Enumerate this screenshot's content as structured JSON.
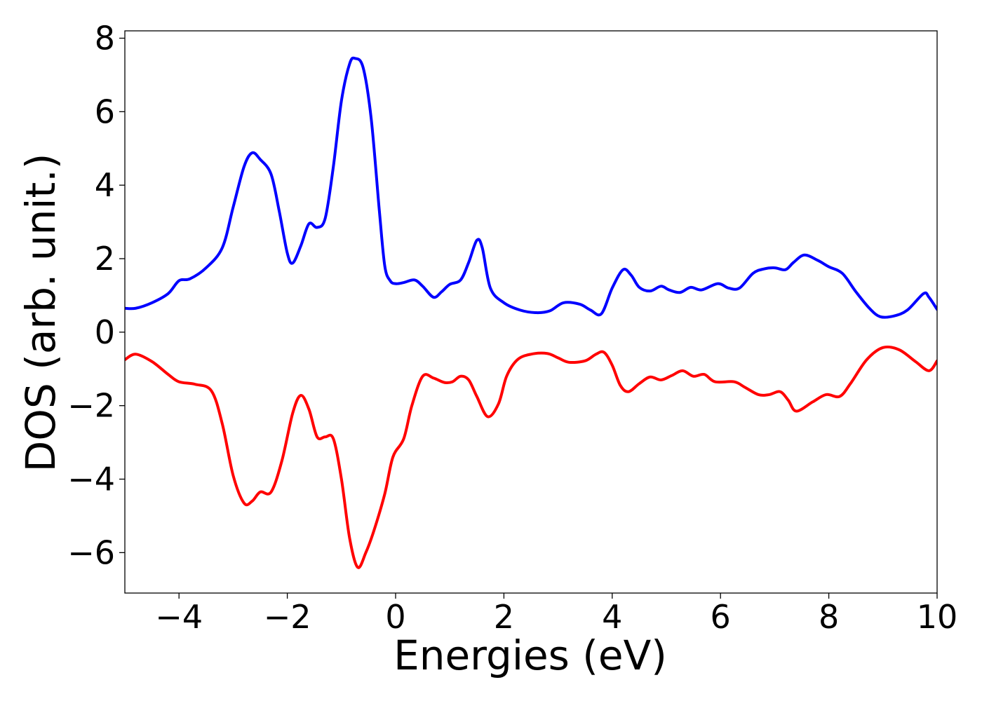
{
  "chart_data": {
    "type": "line",
    "xlabel": "Energies (eV)",
    "ylabel": "DOS (arb. unit.)",
    "xlim": [
      -5,
      10
    ],
    "ylim": [
      -7.1,
      8.2
    ],
    "xticks": [
      -4,
      -2,
      0,
      2,
      4,
      6,
      8,
      10
    ],
    "xtick_labels": [
      "−4",
      "−2",
      "0",
      "2",
      "4",
      "6",
      "8",
      "10"
    ],
    "yticks": [
      -6,
      -4,
      -2,
      0,
      2,
      4,
      6,
      8
    ],
    "ytick_labels": [
      "−6",
      "−4",
      "−2",
      "0",
      "2",
      "4",
      "6",
      "8"
    ],
    "grid": false,
    "series": [
      {
        "color": "#0000ff",
        "points": [
          [
            -5.0,
            0.65
          ],
          [
            -4.8,
            0.65
          ],
          [
            -4.5,
            0.8
          ],
          [
            -4.2,
            1.05
          ],
          [
            -4.0,
            1.4
          ],
          [
            -3.8,
            1.45
          ],
          [
            -3.5,
            1.75
          ],
          [
            -3.2,
            2.3
          ],
          [
            -3.0,
            3.4
          ],
          [
            -2.8,
            4.5
          ],
          [
            -2.65,
            4.88
          ],
          [
            -2.5,
            4.7
          ],
          [
            -2.3,
            4.3
          ],
          [
            -2.15,
            3.3
          ],
          [
            -2.0,
            2.15
          ],
          [
            -1.9,
            1.88
          ],
          [
            -1.75,
            2.35
          ],
          [
            -1.6,
            2.95
          ],
          [
            -1.45,
            2.85
          ],
          [
            -1.3,
            3.1
          ],
          [
            -1.15,
            4.5
          ],
          [
            -1.0,
            6.3
          ],
          [
            -0.85,
            7.3
          ],
          [
            -0.75,
            7.45
          ],
          [
            -0.6,
            7.2
          ],
          [
            -0.45,
            5.8
          ],
          [
            -0.3,
            3.3
          ],
          [
            -0.2,
            1.8
          ],
          [
            -0.1,
            1.4
          ],
          [
            0.0,
            1.32
          ],
          [
            0.15,
            1.35
          ],
          [
            0.35,
            1.42
          ],
          [
            0.5,
            1.25
          ],
          [
            0.7,
            0.95
          ],
          [
            0.85,
            1.1
          ],
          [
            1.0,
            1.3
          ],
          [
            1.2,
            1.42
          ],
          [
            1.35,
            1.9
          ],
          [
            1.5,
            2.5
          ],
          [
            1.6,
            2.3
          ],
          [
            1.75,
            1.2
          ],
          [
            2.0,
            0.8
          ],
          [
            2.3,
            0.6
          ],
          [
            2.6,
            0.53
          ],
          [
            2.85,
            0.58
          ],
          [
            3.1,
            0.8
          ],
          [
            3.4,
            0.76
          ],
          [
            3.6,
            0.6
          ],
          [
            3.8,
            0.5
          ],
          [
            4.0,
            1.2
          ],
          [
            4.2,
            1.7
          ],
          [
            4.35,
            1.55
          ],
          [
            4.5,
            1.22
          ],
          [
            4.7,
            1.12
          ],
          [
            4.9,
            1.25
          ],
          [
            5.05,
            1.15
          ],
          [
            5.25,
            1.08
          ],
          [
            5.45,
            1.22
          ],
          [
            5.65,
            1.15
          ],
          [
            5.95,
            1.32
          ],
          [
            6.15,
            1.2
          ],
          [
            6.35,
            1.2
          ],
          [
            6.6,
            1.6
          ],
          [
            6.8,
            1.72
          ],
          [
            7.0,
            1.75
          ],
          [
            7.2,
            1.7
          ],
          [
            7.35,
            1.9
          ],
          [
            7.55,
            2.1
          ],
          [
            7.8,
            1.95
          ],
          [
            8.0,
            1.78
          ],
          [
            8.25,
            1.6
          ],
          [
            8.5,
            1.1
          ],
          [
            8.75,
            0.65
          ],
          [
            8.95,
            0.42
          ],
          [
            9.2,
            0.44
          ],
          [
            9.45,
            0.6
          ],
          [
            9.75,
            1.05
          ],
          [
            9.85,
            0.95
          ],
          [
            10.0,
            0.62
          ]
        ]
      },
      {
        "color": "#ff0000",
        "points": [
          [
            -5.0,
            -0.75
          ],
          [
            -4.8,
            -0.6
          ],
          [
            -4.5,
            -0.8
          ],
          [
            -4.2,
            -1.15
          ],
          [
            -4.0,
            -1.35
          ],
          [
            -3.7,
            -1.42
          ],
          [
            -3.4,
            -1.6
          ],
          [
            -3.2,
            -2.5
          ],
          [
            -3.0,
            -3.9
          ],
          [
            -2.8,
            -4.65
          ],
          [
            -2.65,
            -4.6
          ],
          [
            -2.5,
            -4.35
          ],
          [
            -2.3,
            -4.35
          ],
          [
            -2.1,
            -3.5
          ],
          [
            -1.9,
            -2.2
          ],
          [
            -1.75,
            -1.72
          ],
          [
            -1.6,
            -2.1
          ],
          [
            -1.45,
            -2.85
          ],
          [
            -1.3,
            -2.85
          ],
          [
            -1.15,
            -2.9
          ],
          [
            -1.0,
            -4.0
          ],
          [
            -0.85,
            -5.6
          ],
          [
            -0.7,
            -6.4
          ],
          [
            -0.55,
            -6.0
          ],
          [
            -0.4,
            -5.4
          ],
          [
            -0.2,
            -4.4
          ],
          [
            -0.05,
            -3.4
          ],
          [
            0.15,
            -2.9
          ],
          [
            0.3,
            -2.0
          ],
          [
            0.5,
            -1.2
          ],
          [
            0.7,
            -1.25
          ],
          [
            0.9,
            -1.37
          ],
          [
            1.05,
            -1.35
          ],
          [
            1.2,
            -1.2
          ],
          [
            1.35,
            -1.3
          ],
          [
            1.5,
            -1.75
          ],
          [
            1.7,
            -2.3
          ],
          [
            1.9,
            -1.95
          ],
          [
            2.05,
            -1.2
          ],
          [
            2.25,
            -0.75
          ],
          [
            2.5,
            -0.6
          ],
          [
            2.8,
            -0.58
          ],
          [
            3.0,
            -0.7
          ],
          [
            3.2,
            -0.82
          ],
          [
            3.5,
            -0.78
          ],
          [
            3.7,
            -0.6
          ],
          [
            3.85,
            -0.55
          ],
          [
            4.0,
            -0.9
          ],
          [
            4.15,
            -1.45
          ],
          [
            4.3,
            -1.62
          ],
          [
            4.5,
            -1.4
          ],
          [
            4.7,
            -1.22
          ],
          [
            4.9,
            -1.3
          ],
          [
            5.1,
            -1.18
          ],
          [
            5.3,
            -1.05
          ],
          [
            5.5,
            -1.2
          ],
          [
            5.7,
            -1.15
          ],
          [
            5.9,
            -1.35
          ],
          [
            6.25,
            -1.35
          ],
          [
            6.45,
            -1.5
          ],
          [
            6.7,
            -1.7
          ],
          [
            6.9,
            -1.7
          ],
          [
            7.1,
            -1.62
          ],
          [
            7.25,
            -1.85
          ],
          [
            7.4,
            -2.15
          ],
          [
            7.7,
            -1.9
          ],
          [
            7.95,
            -1.7
          ],
          [
            8.2,
            -1.75
          ],
          [
            8.4,
            -1.4
          ],
          [
            8.7,
            -0.75
          ],
          [
            9.0,
            -0.42
          ],
          [
            9.3,
            -0.48
          ],
          [
            9.6,
            -0.8
          ],
          [
            9.85,
            -1.05
          ],
          [
            10.0,
            -0.78
          ]
        ]
      }
    ]
  }
}
